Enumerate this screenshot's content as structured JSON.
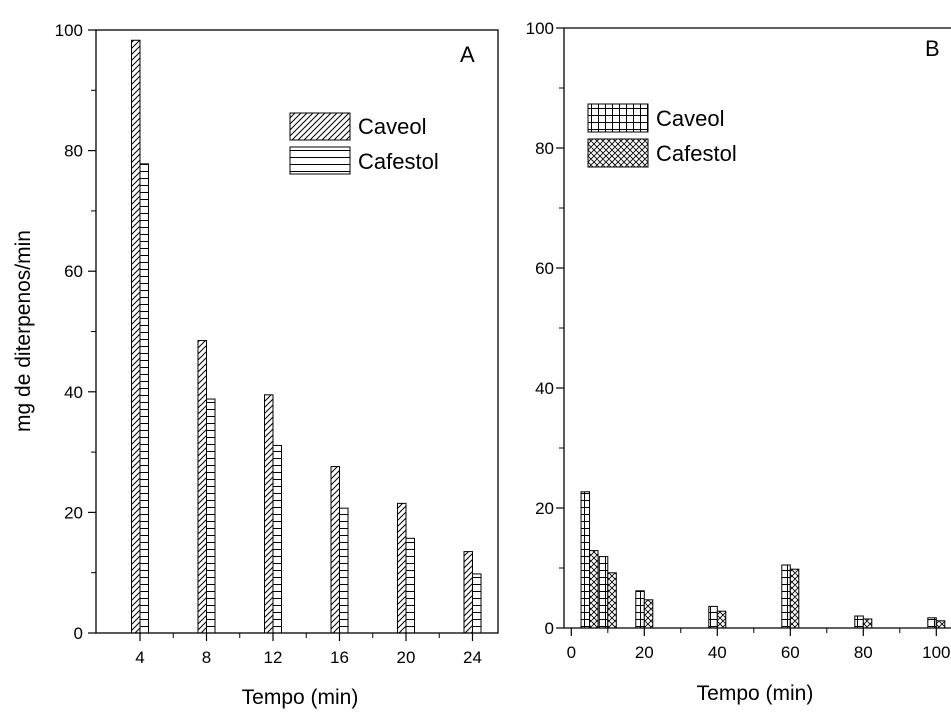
{
  "chart_data": [
    {
      "panel": "A",
      "type": "bar",
      "title": "",
      "xlabel": "Tempo (min)",
      "ylabel": "mg de diterpenos/min",
      "categories": [
        "4",
        "8",
        "12",
        "16",
        "20",
        "24"
      ],
      "ylim": [
        0,
        100
      ],
      "yticks": [
        "0",
        "20",
        "40",
        "60",
        "80",
        "100"
      ],
      "legend_position": "top-right",
      "series": [
        {
          "name": "Caveol",
          "pattern": "diagonal",
          "values": [
            98.3,
            48.5,
            39.5,
            27.6,
            21.5,
            13.5
          ]
        },
        {
          "name": "Cafestol",
          "pattern": "horizontal",
          "values": [
            77.8,
            38.8,
            31.1,
            20.7,
            15.7,
            9.8
          ]
        }
      ]
    },
    {
      "panel": "B",
      "type": "bar",
      "title": "",
      "xlabel": "Tempo (min)",
      "ylabel": "",
      "xlim": [
        -2,
        102
      ],
      "ylim": [
        0,
        100
      ],
      "xticks": [
        "0",
        "20",
        "40",
        "60",
        "80",
        "100"
      ],
      "yticks": [
        "0",
        "20",
        "40",
        "60",
        "80",
        "100"
      ],
      "legend_position": "top-left",
      "x": [
        5,
        10,
        20,
        40,
        60,
        80,
        100
      ],
      "series": [
        {
          "name": "Caveol",
          "pattern": "grid",
          "values": [
            22.7,
            11.9,
            6.2,
            3.6,
            10.5,
            2.0,
            1.7
          ]
        },
        {
          "name": "Cafestol",
          "pattern": "crosshatch",
          "values": [
            12.9,
            9.2,
            4.7,
            2.8,
            9.8,
            1.5,
            1.2
          ]
        }
      ]
    }
  ]
}
